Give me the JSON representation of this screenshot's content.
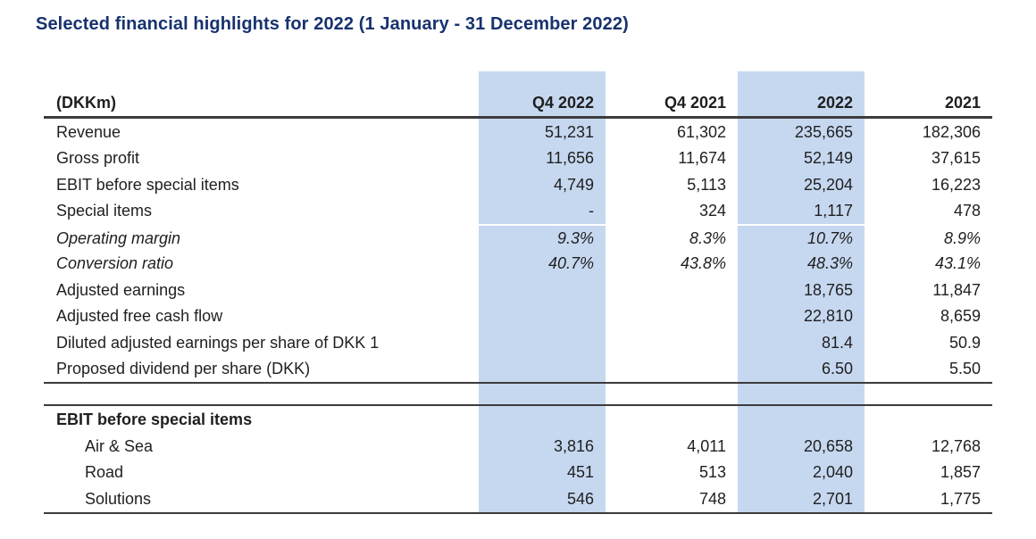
{
  "title": "Selected financial highlights for 2022 (1 January - 31 December 2022)",
  "colors": {
    "title_navy": "#17326f",
    "column_highlight_blue": "#c6d8f0",
    "rule_dark": "#3c3c3c"
  },
  "table": {
    "unit_label": "(DKKm)",
    "columns": [
      {
        "label": "Q4 2022",
        "highlight": true
      },
      {
        "label": "Q4 2021",
        "highlight": false
      },
      {
        "label": "2022",
        "highlight": true
      },
      {
        "label": "2021",
        "highlight": false
      }
    ],
    "rows": [
      {
        "label": "Revenue",
        "values": [
          "51,231",
          "61,302",
          "235,665",
          "182,306"
        ],
        "style": "normal"
      },
      {
        "label": "Gross profit",
        "values": [
          "11,656",
          "11,674",
          "52,149",
          "37,615"
        ],
        "style": "normal"
      },
      {
        "label": "EBIT before special items",
        "values": [
          "4,749",
          "5,113",
          "25,204",
          "16,223"
        ],
        "style": "normal"
      },
      {
        "label": "Special items",
        "values": [
          "-",
          "324",
          "1,117",
          "478"
        ],
        "style": "normal"
      },
      {
        "label": "Operating margin",
        "values": [
          "9.3%",
          "8.3%",
          "10.7%",
          "8.9%"
        ],
        "style": "italic"
      },
      {
        "label": "Conversion ratio",
        "values": [
          "40.7%",
          "43.8%",
          "48.3%",
          "43.1%"
        ],
        "style": "italic"
      },
      {
        "label": "Adjusted earnings",
        "values": [
          "",
          "",
          "18,765",
          "11,847"
        ],
        "style": "normal"
      },
      {
        "label": "Adjusted free cash flow",
        "values": [
          "",
          "",
          "22,810",
          "8,659"
        ],
        "style": "normal"
      },
      {
        "label": "Diluted adjusted earnings per share of DKK 1",
        "values": [
          "",
          "",
          "81.4",
          "50.9"
        ],
        "style": "normal"
      },
      {
        "label": "Proposed dividend per share (DKK)",
        "values": [
          "",
          "",
          "6.50",
          "5.50"
        ],
        "style": "normal"
      }
    ],
    "section": {
      "header": "EBIT before special items",
      "rows": [
        {
          "label": "Air & Sea",
          "values": [
            "3,816",
            "4,011",
            "20,658",
            "12,768"
          ]
        },
        {
          "label": "Road",
          "values": [
            "451",
            "513",
            "2,040",
            "1,857"
          ]
        },
        {
          "label": "Solutions",
          "values": [
            "546",
            "748",
            "2,701",
            "1,775"
          ]
        }
      ]
    }
  }
}
